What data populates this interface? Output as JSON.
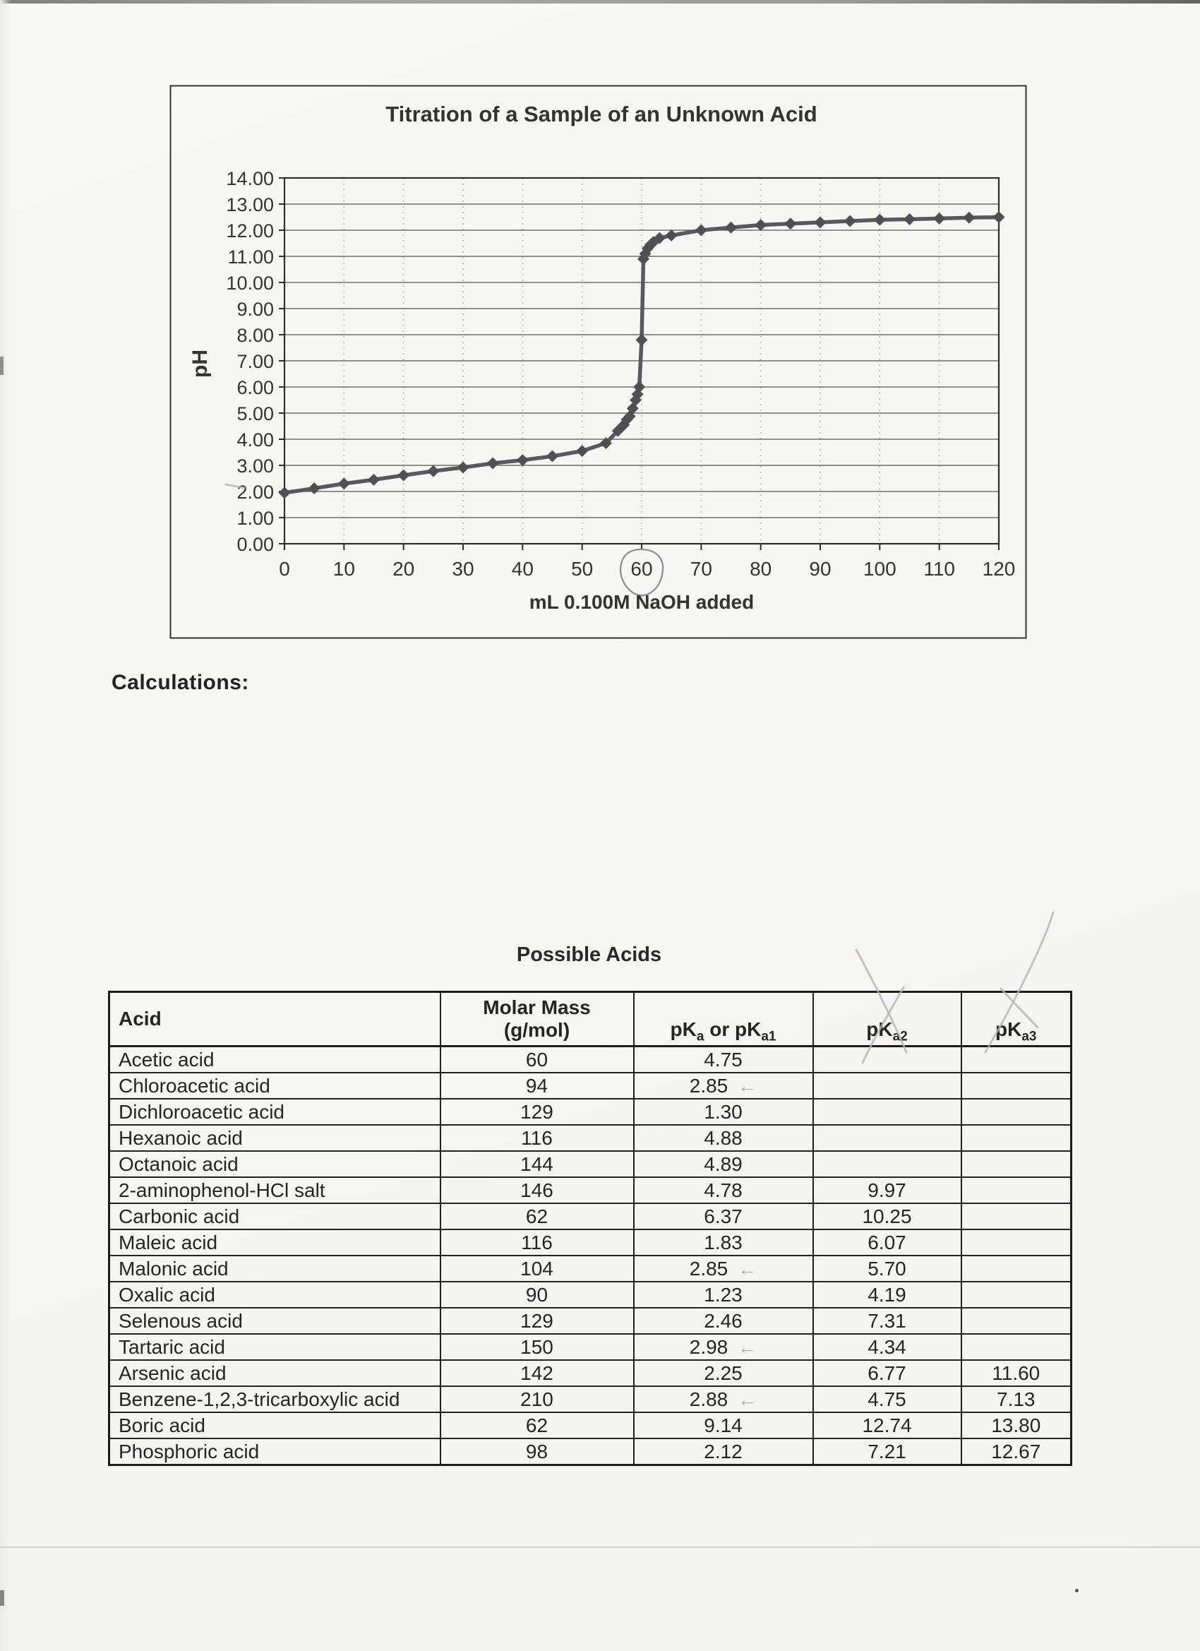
{
  "page": {
    "calculations_heading": "Calculations:"
  },
  "chart_data": {
    "type": "line",
    "title": "Titration of a Sample of an Unknown Acid",
    "xlabel": "mL 0.100M NaOH added",
    "ylabel": "pH",
    "xlim": [
      0,
      120
    ],
    "ylim": [
      0,
      14
    ],
    "xtick_step": 10,
    "ytick_step": 1,
    "ytick_decimals": 2,
    "grid": true,
    "legend": "none",
    "marker": "diamond",
    "line_color": "#5a5760",
    "marker_color": "#514e55",
    "equivalence_point_mL": 60,
    "x": [
      0,
      5,
      10,
      15,
      20,
      25,
      30,
      35,
      40,
      45,
      50,
      54,
      56,
      57,
      57.5,
      58,
      58.5,
      59,
      59.3,
      59.6,
      60,
      60.3,
      60.6,
      61,
      61.5,
      62,
      63,
      65,
      70,
      75,
      80,
      85,
      90,
      95,
      100,
      105,
      110,
      115,
      120
    ],
    "y": [
      1.95,
      2.12,
      2.3,
      2.45,
      2.62,
      2.78,
      2.92,
      3.08,
      3.2,
      3.35,
      3.55,
      3.85,
      4.32,
      4.55,
      4.75,
      4.88,
      5.18,
      5.5,
      5.72,
      6.0,
      7.8,
      10.9,
      11.1,
      11.3,
      11.45,
      11.55,
      11.7,
      11.8,
      12.0,
      12.1,
      12.2,
      12.25,
      12.3,
      12.35,
      12.4,
      12.42,
      12.45,
      12.48,
      12.5
    ]
  },
  "pencil": {
    "arrow_glyph": "←",
    "circled_x_tick": "60",
    "crossed_out_headers": [
      "pKa2",
      "pKa3"
    ]
  },
  "table": {
    "title": "Possible Acids",
    "headers": [
      {
        "label": "Acid",
        "segments": [
          {
            "t": "Acid"
          }
        ]
      },
      {
        "label": "Molar Mass (g/mol)",
        "segments": [
          {
            "t": "Molar Mass"
          },
          {
            "br": true
          },
          {
            "t": "(g/mol)"
          }
        ]
      },
      {
        "label": "pKa or pKa1",
        "segments": [
          {
            "t": "pK"
          },
          {
            "t": "a",
            "sub": true
          },
          {
            "t": " or pK"
          },
          {
            "t": "a1",
            "sub": true
          }
        ]
      },
      {
        "label": "pKa2",
        "segments": [
          {
            "t": "pK"
          },
          {
            "t": "a2",
            "sub": true
          }
        ]
      },
      {
        "label": "pKa3",
        "segments": [
          {
            "t": "pK"
          },
          {
            "t": "a3",
            "sub": true
          }
        ]
      }
    ],
    "rows": [
      {
        "acid": "Acetic acid",
        "molar_mass": "60",
        "pka1": "4.75",
        "pka2": "",
        "pka3": "",
        "pencil_arrow": false
      },
      {
        "acid": "Chloroacetic acid",
        "molar_mass": "94",
        "pka1": "2.85",
        "pka2": "",
        "pka3": "",
        "pencil_arrow": true
      },
      {
        "acid": "Dichloroacetic acid",
        "molar_mass": "129",
        "pka1": "1.30",
        "pka2": "",
        "pka3": "",
        "pencil_arrow": false
      },
      {
        "acid": "Hexanoic acid",
        "molar_mass": "116",
        "pka1": "4.88",
        "pka2": "",
        "pka3": "",
        "pencil_arrow": false
      },
      {
        "acid": "Octanoic acid",
        "molar_mass": "144",
        "pka1": "4.89",
        "pka2": "",
        "pka3": "",
        "pencil_arrow": false
      },
      {
        "acid": "2-aminophenol-HCl salt",
        "molar_mass": "146",
        "pka1": "4.78",
        "pka2": "9.97",
        "pka3": "",
        "pencil_arrow": false
      },
      {
        "acid": "Carbonic acid",
        "molar_mass": "62",
        "pka1": "6.37",
        "pka2": "10.25",
        "pka3": "",
        "pencil_arrow": false
      },
      {
        "acid": "Maleic acid",
        "molar_mass": "116",
        "pka1": "1.83",
        "pka2": "6.07",
        "pka3": "",
        "pencil_arrow": false
      },
      {
        "acid": "Malonic acid",
        "molar_mass": "104",
        "pka1": "2.85",
        "pka2": "5.70",
        "pka3": "",
        "pencil_arrow": true
      },
      {
        "acid": "Oxalic acid",
        "molar_mass": "90",
        "pka1": "1.23",
        "pka2": "4.19",
        "pka3": "",
        "pencil_arrow": false
      },
      {
        "acid": "Selenous acid",
        "molar_mass": "129",
        "pka1": "2.46",
        "pka2": "7.31",
        "pka3": "",
        "pencil_arrow": false
      },
      {
        "acid": "Tartaric acid",
        "molar_mass": "150",
        "pka1": "2.98",
        "pka2": "4.34",
        "pka3": "",
        "pencil_arrow": true
      },
      {
        "acid": "Arsenic acid",
        "molar_mass": "142",
        "pka1": "2.25",
        "pka2": "6.77",
        "pka3": "11.60",
        "pencil_arrow": false
      },
      {
        "acid": "Benzene-1,2,3-tricarboxylic acid",
        "molar_mass": "210",
        "pka1": "2.88",
        "pka2": "4.75",
        "pka3": "7.13",
        "pencil_arrow": true
      },
      {
        "acid": "Boric acid",
        "molar_mass": "62",
        "pka1": "9.14",
        "pka2": "12.74",
        "pka3": "13.80",
        "pencil_arrow": false
      },
      {
        "acid": "Phosphoric acid",
        "molar_mass": "98",
        "pka1": "2.12",
        "pka2": "7.21",
        "pka3": "12.67",
        "pencil_arrow": false
      }
    ]
  }
}
